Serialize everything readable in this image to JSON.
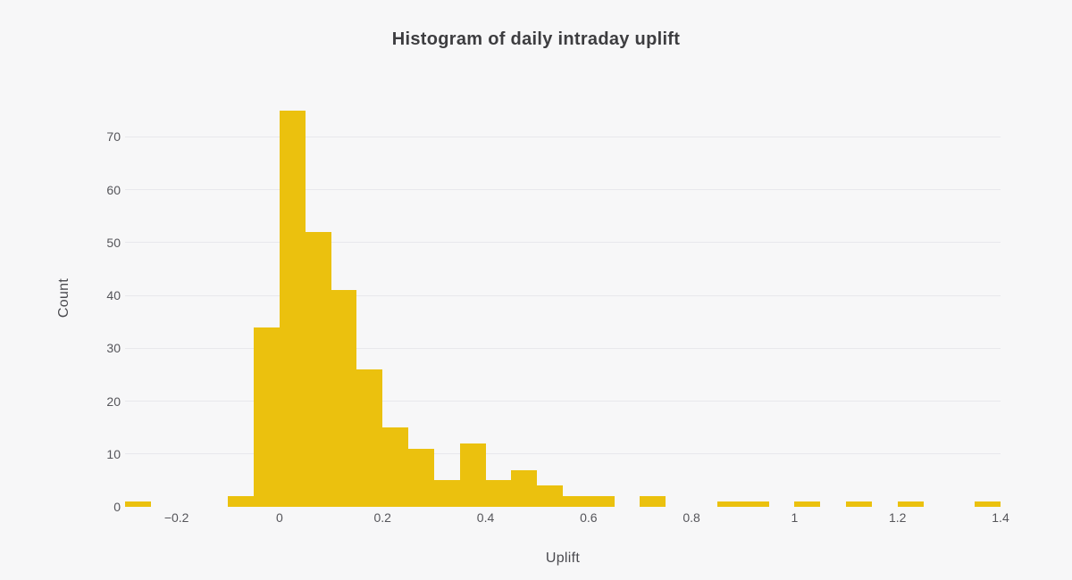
{
  "page": {
    "background_color": "#f7f7f8"
  },
  "chart_data": {
    "type": "bar",
    "subtype": "histogram",
    "title": "Histogram of daily intraday uplift",
    "xlabel": "Uplift",
    "ylabel": "Count",
    "bar_color": "#ebc10e",
    "gridline_color": "#e8e8ec",
    "grid": true,
    "legend": "none",
    "bin_width": 0.05,
    "xlim": [
      -0.3,
      1.4
    ],
    "ylim": [
      0,
      79
    ],
    "x_tick_values": [
      -0.2,
      0,
      0.2,
      0.4,
      0.6,
      0.8,
      1,
      1.2,
      1.4
    ],
    "x_tick_labels": [
      "−0.2",
      "0",
      "0.2",
      "0.4",
      "0.6",
      "0.8",
      "1",
      "1.2",
      "1.4"
    ],
    "y_tick_values": [
      0,
      10,
      20,
      30,
      40,
      50,
      60,
      70
    ],
    "y_tick_labels": [
      "0",
      "10",
      "20",
      "30",
      "40",
      "50",
      "60",
      "70"
    ],
    "bin_starts": [
      -0.3,
      -0.25,
      -0.2,
      -0.15,
      -0.1,
      -0.05,
      0.0,
      0.05,
      0.1,
      0.15,
      0.2,
      0.25,
      0.3,
      0.35,
      0.4,
      0.45,
      0.5,
      0.55,
      0.6,
      0.65,
      0.7,
      0.75,
      0.8,
      0.85,
      0.9,
      0.95,
      1.0,
      1.05,
      1.1,
      1.15,
      1.2,
      1.25,
      1.3,
      1.35
    ],
    "counts": [
      1,
      0,
      0,
      0,
      2,
      34,
      75,
      52,
      41,
      26,
      15,
      11,
      5,
      12,
      5,
      7,
      4,
      2,
      2,
      0,
      2,
      0,
      0,
      1,
      1,
      0,
      1,
      0,
      1,
      0,
      1,
      0,
      0,
      1
    ]
  }
}
